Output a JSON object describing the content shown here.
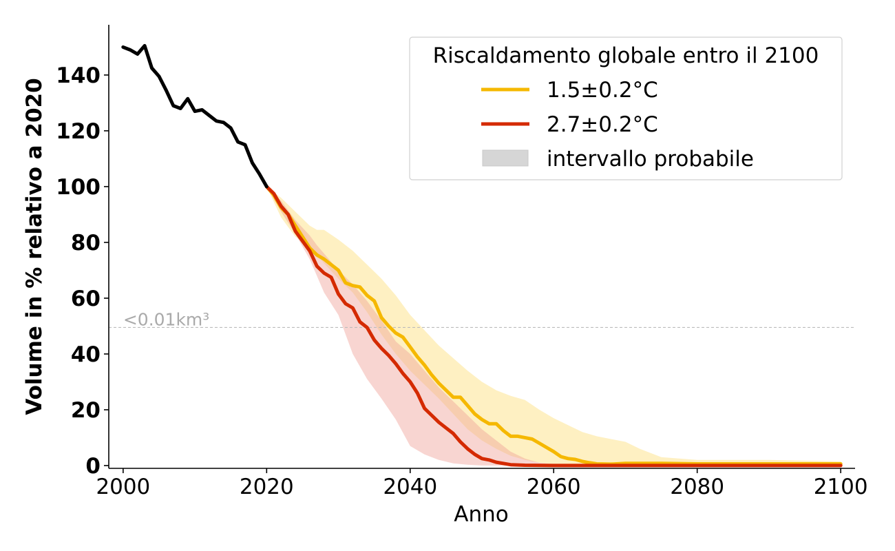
{
  "chart_data": {
    "type": "line",
    "xlabel": "Anno",
    "ylabel": "Volume in % relativo a 2020",
    "xlim": [
      1998,
      2102
    ],
    "ylim": [
      -1,
      158
    ],
    "xticks": [
      2000,
      2020,
      2040,
      2060,
      2080,
      2100
    ],
    "xtick_labels": [
      "2000",
      "2020",
      "2040",
      "2060",
      "2080",
      "2100"
    ],
    "yticks": [
      0,
      20,
      40,
      60,
      80,
      100,
      120,
      140
    ],
    "ytick_labels": [
      "0",
      "20",
      "40",
      "60",
      "80",
      "100",
      "120",
      "140"
    ],
    "grid": false,
    "threshold": {
      "y": 49.5,
      "label": "<0.01km³"
    },
    "legend": {
      "title": "Riscaldamento globale entro il 2100",
      "position": "top-right",
      "entries": [
        "1.5±0.2°C",
        "2.7±0.2°C",
        "intervallo probabile"
      ]
    },
    "colors": {
      "historical": "#000000",
      "s15": "#f5b800",
      "s27": "#d42a00",
      "s15_band": "#fde9a8",
      "s27_band": "#efa29a",
      "legend_band": "#d6d6d6",
      "threshold": "#bbbbbb"
    },
    "series": [
      {
        "id": "historical",
        "x": [
          2000,
          2001,
          2002,
          2003,
          2004,
          2005,
          2006,
          2007,
          2008,
          2009,
          2010,
          2011,
          2012,
          2013,
          2014,
          2015,
          2016,
          2017,
          2018,
          2019,
          2020
        ],
        "values": [
          150,
          149,
          147.5,
          150.5,
          142.5,
          139.5,
          134.5,
          129,
          128,
          131.5,
          127,
          127.5,
          125.5,
          123.5,
          123,
          121,
          116,
          115,
          108.5,
          104.5,
          100
        ]
      },
      {
        "id": "s15",
        "x": [
          2020,
          2021,
          2022,
          2023,
          2024,
          2025,
          2026,
          2027,
          2028,
          2029,
          2030,
          2031,
          2032,
          2033,
          2034,
          2035,
          2036,
          2037,
          2038,
          2039,
          2040,
          2041,
          2042,
          2043,
          2044,
          2045,
          2046,
          2047,
          2048,
          2049,
          2050,
          2051,
          2052,
          2053,
          2054,
          2055,
          2056,
          2057,
          2058,
          2059,
          2060,
          2061,
          2062,
          2063,
          2064,
          2065,
          2066,
          2068,
          2070,
          2075,
          2080,
          2090,
          2100
        ],
        "values": [
          100,
          97,
          92.5,
          90,
          86,
          82,
          78,
          75.5,
          74,
          72,
          70,
          65.5,
          64.5,
          64,
          61,
          59,
          53,
          50,
          47.5,
          46,
          42.5,
          39,
          36,
          32.5,
          29.5,
          27,
          24.5,
          24.5,
          21.5,
          18.5,
          16.5,
          15,
          15,
          12.5,
          10.5,
          10.5,
          10,
          9.5,
          8,
          6.5,
          5,
          3.2,
          2.5,
          2.2,
          1.5,
          1,
          0.6,
          0.5,
          0.8,
          0.8,
          0.6,
          0.6,
          0.6
        ]
      },
      {
        "id": "s27",
        "x": [
          2020,
          2021,
          2022,
          2023,
          2024,
          2025,
          2026,
          2027,
          2028,
          2029,
          2030,
          2031,
          2032,
          2033,
          2034,
          2035,
          2036,
          2037,
          2038,
          2039,
          2040,
          2041,
          2042,
          2043,
          2044,
          2045,
          2046,
          2047,
          2048,
          2049,
          2050,
          2051,
          2052,
          2054,
          2056,
          2060,
          2065,
          2070,
          2080,
          2090,
          2100
        ],
        "values": [
          100,
          97.5,
          93,
          90,
          84,
          80.5,
          77,
          71.5,
          69,
          67.5,
          61.5,
          58,
          56.5,
          51.5,
          49.5,
          45,
          42,
          39.5,
          36.5,
          33,
          30,
          26,
          20.5,
          18,
          15.5,
          13.5,
          11.5,
          8.5,
          6,
          4,
          2.5,
          2,
          1.2,
          0.3,
          0.1,
          0,
          0,
          0,
          0,
          0,
          0
        ]
      }
    ],
    "bands": [
      {
        "id": "s15_band",
        "x": [
          2020,
          2022,
          2024,
          2026,
          2027,
          2028,
          2030,
          2032,
          2034,
          2036,
          2038,
          2040,
          2042,
          2044,
          2046,
          2048,
          2050,
          2052,
          2054,
          2056,
          2058,
          2060,
          2062,
          2064,
          2066,
          2068,
          2070,
          2072,
          2075,
          2080,
          2090,
          2100
        ],
        "upper": [
          100,
          96,
          91,
          86,
          84.5,
          84.5,
          81,
          77,
          72,
          67,
          61,
          54,
          48.5,
          43,
          38.5,
          34,
          30,
          27,
          25,
          23.5,
          20,
          17,
          14.5,
          12,
          10.5,
          9.5,
          8.5,
          6,
          3,
          2,
          2,
          1.5
        ],
        "lower": [
          100,
          89,
          82,
          78,
          75.5,
          72.5,
          67,
          62,
          55,
          47,
          40,
          34,
          29,
          24,
          18.5,
          13,
          9,
          6,
          3.5,
          2,
          1,
          0.5,
          0.2,
          0.1,
          0,
          0,
          0,
          0,
          0,
          0,
          0,
          0
        ]
      },
      {
        "id": "s27_band",
        "x": [
          2020,
          2022,
          2024,
          2026,
          2027,
          2028,
          2030,
          2032,
          2034,
          2036,
          2038,
          2040,
          2042,
          2044,
          2046,
          2048,
          2050,
          2052,
          2054,
          2056,
          2058,
          2060,
          2062,
          2064,
          2066,
          2070,
          2080,
          2090,
          2100
        ],
        "upper": [
          100,
          95,
          88,
          82.5,
          79,
          76,
          70,
          65,
          59,
          52,
          44.5,
          40,
          34,
          28,
          23,
          18,
          13,
          9,
          5,
          2.5,
          1,
          0.5,
          0.2,
          0.1,
          0,
          0,
          0,
          0,
          0
        ],
        "lower": [
          100,
          91,
          83,
          74,
          68,
          62,
          54,
          40,
          31,
          24,
          16.5,
          7,
          4,
          2,
          0.8,
          0.3,
          0,
          0,
          0,
          0,
          0,
          0,
          0,
          0,
          0,
          0,
          0,
          0,
          0
        ]
      }
    ]
  }
}
